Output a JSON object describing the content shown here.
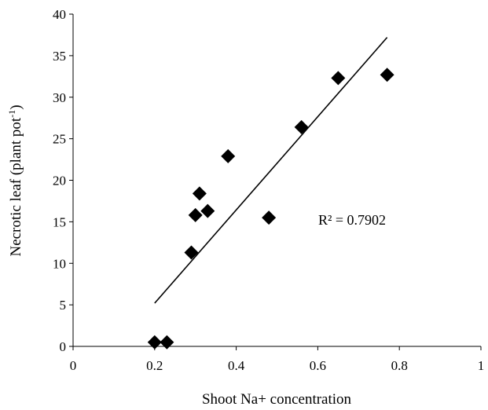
{
  "chart_data": {
    "type": "scatter",
    "xlabel": "Shoot Na+ concentration",
    "ylabel": "Necrotic leaf (plant pot",
    "ylabel_sup": "-1",
    "ylabel_close": ")",
    "xlim": [
      0,
      1
    ],
    "ylim": [
      0,
      40
    ],
    "x_ticks": [
      "0",
      "0.2",
      "0.4",
      "0.6",
      "0.8",
      "1"
    ],
    "x_tick_values": [
      0,
      0.2,
      0.4,
      0.6,
      0.8,
      1
    ],
    "y_ticks": [
      "0",
      "5",
      "10",
      "15",
      "20",
      "25",
      "30",
      "35",
      "40"
    ],
    "y_tick_values": [
      0,
      5,
      10,
      15,
      20,
      25,
      30,
      35,
      40
    ],
    "grid": false,
    "legend": "none",
    "marker": "diamond",
    "marker_color": "#000000",
    "series": [
      {
        "points": [
          {
            "x": 0.2,
            "y": 0.5
          },
          {
            "x": 0.23,
            "y": 0.5
          },
          {
            "x": 0.29,
            "y": 11.3
          },
          {
            "x": 0.3,
            "y": 15.8
          },
          {
            "x": 0.31,
            "y": 18.4
          },
          {
            "x": 0.33,
            "y": 16.3
          },
          {
            "x": 0.38,
            "y": 22.9
          },
          {
            "x": 0.48,
            "y": 15.5
          },
          {
            "x": 0.56,
            "y": 26.4
          },
          {
            "x": 0.65,
            "y": 32.3
          },
          {
            "x": 0.77,
            "y": 32.7
          }
        ]
      }
    ],
    "trendline": {
      "x": [
        0.2,
        0.77
      ],
      "y": [
        5.2,
        37.2
      ],
      "color": "#000000"
    },
    "annotation": "R² = 0.7902"
  }
}
